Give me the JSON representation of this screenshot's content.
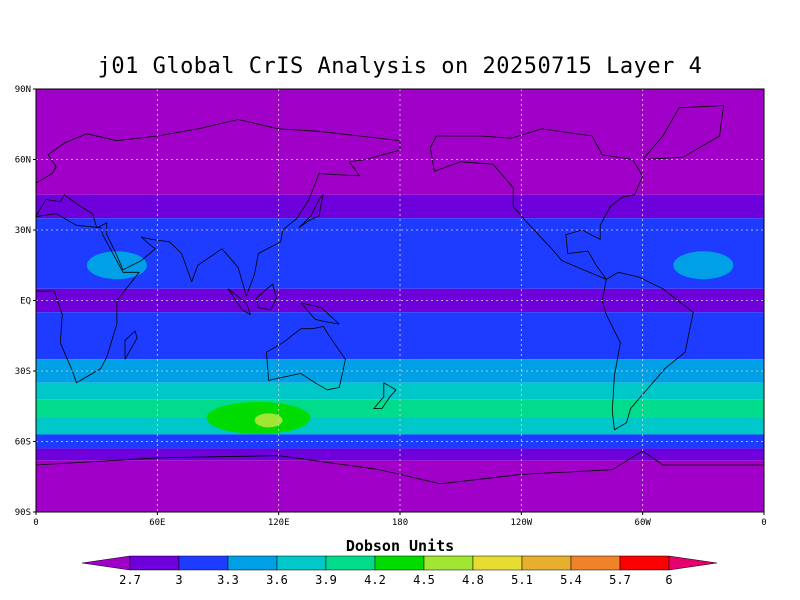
{
  "title": "j01 Global CrIS Analysis on 20250715 Layer 4",
  "colorbar": {
    "title": "Dobson Units",
    "labels": [
      "2.7",
      "3",
      "3.3",
      "3.6",
      "3.9",
      "4.2",
      "4.5",
      "4.8",
      "5.1",
      "5.4",
      "5.7",
      "6"
    ],
    "colors": [
      "#a000c8",
      "#6e00dc",
      "#1e3cff",
      "#00a0e6",
      "#00c8c8",
      "#00dc8c",
      "#00dc00",
      "#a0e632",
      "#e6dc32",
      "#e6af2d",
      "#f08228",
      "#fa0000",
      "#e6006e"
    ]
  },
  "map": {
    "lat_labels": [
      "90N",
      "60N",
      "30N",
      "EQ",
      "30S",
      "60S",
      "90S"
    ],
    "lon_labels": [
      "0",
      "60E",
      "120E",
      "180",
      "120W",
      "60W",
      "0"
    ]
  },
  "chart_data": {
    "type": "heatmap",
    "title": "j01 Global CrIS Analysis on 20250715 Layer 4",
    "xlabel": "",
    "ylabel": "",
    "units": "Dobson Units",
    "xlim": [
      0,
      360
    ],
    "ylim": [
      -90,
      90
    ],
    "levels": [
      2.7,
      3,
      3.3,
      3.6,
      3.9,
      4.2,
      4.5,
      4.8,
      5.1,
      5.4,
      5.7,
      6
    ],
    "lat_bands": [
      {
        "lat_from": 90,
        "lat_to": 45,
        "value": 2.5
      },
      {
        "lat_from": 45,
        "lat_to": 35,
        "value": 2.85
      },
      {
        "lat_from": 35,
        "lat_to": 30,
        "value": 3.1
      },
      {
        "lat_from": 30,
        "lat_to": 20,
        "value": 3.25
      },
      {
        "lat_from": 20,
        "lat_to": 5,
        "value": 3.15
      },
      {
        "lat_from": 5,
        "lat_to": -5,
        "value": 2.85
      },
      {
        "lat_from": -5,
        "lat_to": -25,
        "value": 3.15
      },
      {
        "lat_from": -25,
        "lat_to": -35,
        "value": 3.45
      },
      {
        "lat_from": -35,
        "lat_to": -42,
        "value": 3.7
      },
      {
        "lat_from": -42,
        "lat_to": -50,
        "value": 3.95
      },
      {
        "lat_from": -50,
        "lat_to": -57,
        "value": 3.6
      },
      {
        "lat_from": -57,
        "lat_to": -63,
        "value": 3.1
      },
      {
        "lat_from": -63,
        "lat_to": -68,
        "value": 2.85
      },
      {
        "lat_from": -68,
        "lat_to": -90,
        "value": 2.5
      }
    ],
    "anomalies": [
      {
        "lon": 110,
        "lat": -50,
        "value": 4.3
      },
      {
        "lon": 115,
        "lat": -51,
        "value": 4.7
      },
      {
        "lon": 40,
        "lat": 15,
        "value": 3.5
      },
      {
        "lon": 330,
        "lat": 15,
        "value": 3.5
      }
    ]
  }
}
